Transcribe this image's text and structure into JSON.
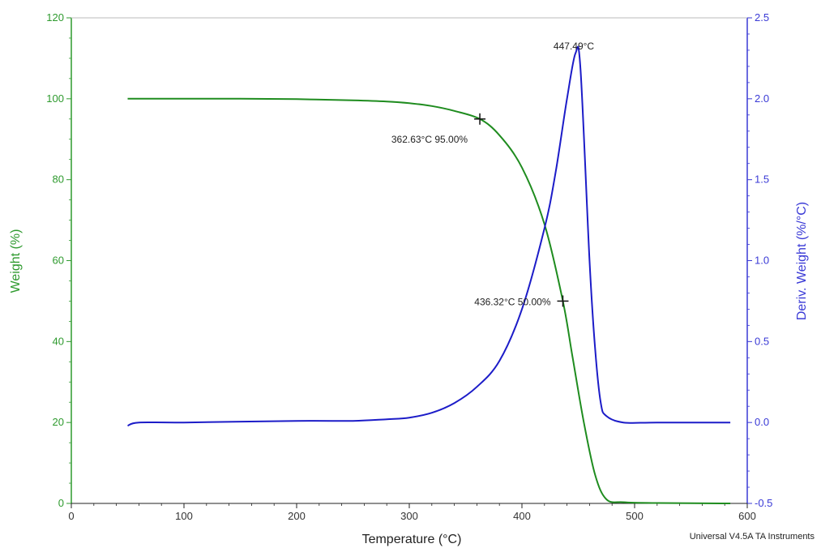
{
  "chart_data": {
    "type": "line",
    "xlabel": "Temperature (°C)",
    "ylabel_left": "Weight (%)",
    "ylabel_right": "Deriv. Weight (%/°C)",
    "xlim": [
      0,
      600
    ],
    "ylim_left": [
      0,
      120
    ],
    "ylim_right": [
      -0.5,
      2.5
    ],
    "x_ticks": [
      0,
      100,
      200,
      300,
      400,
      500,
      600
    ],
    "y_left_ticks": [
      0,
      20,
      40,
      60,
      80,
      100,
      120
    ],
    "y_right_ticks": [
      -0.5,
      0.0,
      0.5,
      1.0,
      1.5,
      2.0,
      2.5
    ],
    "x_tick_labels": [
      "0",
      "100",
      "200",
      "300",
      "400",
      "500",
      "600"
    ],
    "y_left_tick_labels": [
      "0",
      "20",
      "40",
      "60",
      "80",
      "100",
      "120"
    ],
    "y_right_tick_labels": [
      "-0.5",
      "0.0",
      "0.5",
      "1.0",
      "1.5",
      "2.0",
      "2.5"
    ],
    "grid": false,
    "series": [
      {
        "axis": "left",
        "color": "#1f8c1f",
        "x": [
          50,
          100,
          150,
          200,
          250,
          280,
          300,
          320,
          340,
          362.63,
          380,
          400,
          420,
          436.32,
          445,
          455,
          465,
          475,
          490,
          520,
          585
        ],
        "y": [
          100,
          100,
          100,
          99.9,
          99.6,
          99.3,
          98.9,
          98.2,
          97.0,
          95.0,
          91.0,
          83.0,
          69.0,
          50.0,
          36.0,
          20.0,
          7.0,
          1.0,
          0.3,
          0.1,
          0.0
        ]
      },
      {
        "axis": "right",
        "color": "#1c1cc8",
        "x": [
          50,
          60,
          100,
          200,
          250,
          280,
          300,
          320,
          340,
          360,
          380,
          400,
          420,
          430,
          440,
          447.49,
          452,
          460,
          465,
          470,
          475,
          490,
          520,
          585
        ],
        "y": [
          -0.02,
          0.0,
          0.0,
          0.01,
          0.01,
          0.02,
          0.03,
          0.06,
          0.12,
          0.22,
          0.38,
          0.7,
          1.2,
          1.55,
          2.0,
          2.28,
          2.18,
          1.0,
          0.45,
          0.12,
          0.04,
          0.0,
          0.0,
          0.0
        ]
      }
    ],
    "annotations": [
      {
        "text": "447.49°C",
        "x": 447.49,
        "y": 2.28,
        "axis": "right"
      },
      {
        "text": "362.63°C 95.00%",
        "x": 362.63,
        "y": 95.0,
        "axis": "left",
        "marker": "+"
      },
      {
        "text": "436.32°C 50.00%",
        "x": 436.32,
        "y": 50.0,
        "axis": "left",
        "marker": "+"
      }
    ],
    "footer": "Universal V4.5A TA Instruments",
    "colors": {
      "left_axis": "#2e9a2e",
      "right_axis": "#3a3ad6"
    }
  }
}
